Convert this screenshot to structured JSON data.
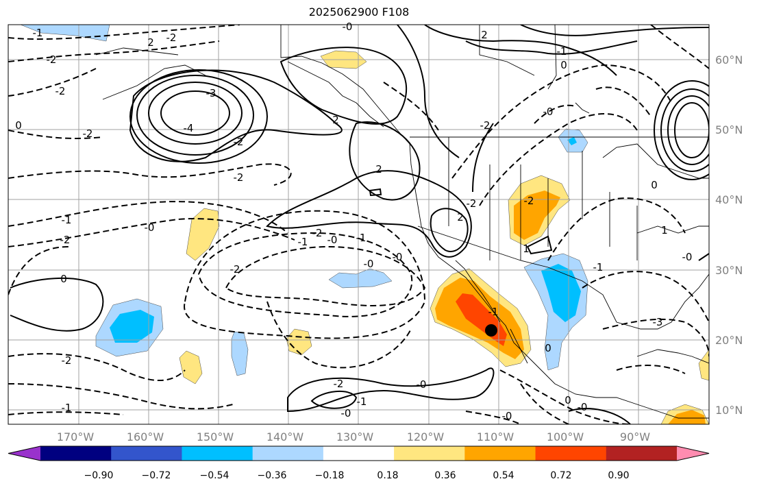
{
  "title": "2025062900 F108",
  "lon_labels": [
    "170°W",
    "160°W",
    "150°W",
    "140°W",
    "130°W",
    "120°W",
    "110°W",
    "100°W",
    "90°W"
  ],
  "lat_labels": [
    "60°N",
    "50°N",
    "40°N",
    "30°N",
    "20°N",
    "10°N"
  ],
  "colorbar": {
    "colors": [
      "#9932cc",
      "#000080",
      "#3355cc",
      "#00bfff",
      "#add8ff",
      "#ffffff",
      "#ffe680",
      "#ffa500",
      "#ff4500",
      "#b22222",
      "#ff8cb0"
    ],
    "ticks": [
      "−0.90",
      "−0.72",
      "−0.54",
      "−0.36",
      "−0.18",
      "0.18",
      "0.36",
      "0.54",
      "0.72",
      "0.90"
    ]
  },
  "contour_labels": [
    "-1",
    "-2",
    "2",
    "-2",
    "-0",
    "2",
    "-1",
    "0",
    "-2",
    "-2",
    "-3",
    "-4",
    "-2",
    "-2",
    "-1",
    "2",
    "0",
    "-0",
    "2",
    "-2",
    "-2",
    "-1",
    "-0",
    "-1",
    "-0",
    "-2",
    "-2",
    "2",
    "0",
    "-3",
    "-1",
    "-2",
    "-2",
    "-1",
    "-0",
    "-0",
    "-0",
    "0",
    "-0",
    "-2",
    "-2",
    "-0",
    "-1",
    "-0",
    "1",
    "0",
    "1",
    "0",
    "-0",
    "-1"
  ],
  "marker": "storm-location"
}
